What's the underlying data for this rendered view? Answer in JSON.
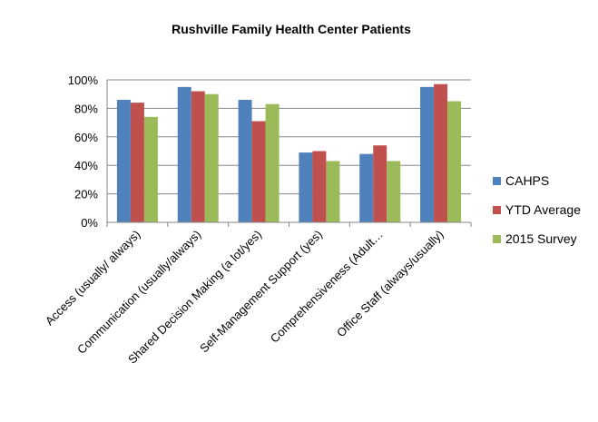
{
  "chart_data": {
    "type": "bar",
    "title": "Rushville Family Health Center Patients",
    "xlabel": "",
    "ylabel": "",
    "ylim": [
      0,
      100
    ],
    "y_ticks": [
      "0%",
      "20%",
      "40%",
      "60%",
      "80%",
      "100%"
    ],
    "y_tick_values": [
      0,
      20,
      40,
      60,
      80,
      100
    ],
    "grid": true,
    "legend_position": "right",
    "categories": [
      "Access  (usually/ always)",
      "Communication (usually/always)",
      "Shared Decision Making (a lot/yes)",
      "Self-Management Support (yes)",
      "Comprehensiveness (Adult…",
      "Office Staff  (always/usually)"
    ],
    "series": [
      {
        "name": "CAHPS",
        "color": "#4F81BD",
        "values": [
          86,
          95,
          86,
          49,
          48,
          95
        ]
      },
      {
        "name": "YTD Average",
        "color": "#C0504D",
        "values": [
          84,
          92,
          71,
          50,
          54,
          97
        ]
      },
      {
        "name": "2015 Survey",
        "color": "#9BBB59",
        "values": [
          74,
          90,
          83,
          43,
          43,
          85
        ]
      }
    ]
  }
}
